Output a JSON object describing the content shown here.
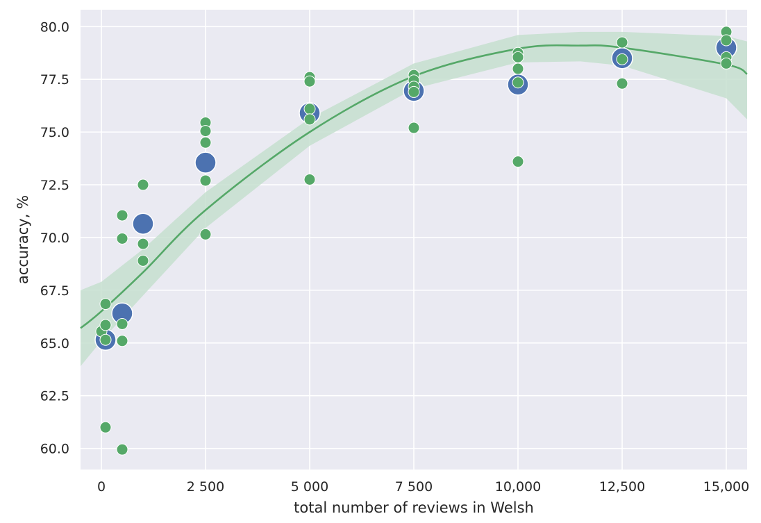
{
  "colors": {
    "plot_background": "#EAEAF2",
    "grid": "#FFFFFF",
    "mean_points": "#4C72B0",
    "run_points": "#55A868",
    "trend_line": "#55A868",
    "confidence_band": "#C5DFCF"
  },
  "chart_data": {
    "type": "scatter",
    "xlabel": "total number of reviews in Welsh",
    "ylabel": "accuracy, %",
    "xlim": [
      -500,
      15500
    ],
    "ylim": [
      59,
      80.8
    ],
    "grid": true,
    "x_ticks": [
      0,
      2500,
      5000,
      7500,
      10000,
      12500,
      15000
    ],
    "x_tick_labels": [
      "0",
      "2 500",
      "5 000",
      "7 500",
      "10,000",
      "12,500",
      "15,000"
    ],
    "y_ticks": [
      60,
      62.5,
      65,
      67.5,
      70,
      72.5,
      75,
      77.5,
      80
    ],
    "y_tick_labels": [
      "60.0",
      "62.5",
      "65.0",
      "67.5",
      "70.0",
      "72.5",
      "75.0",
      "77.5",
      "80.0"
    ],
    "series": [
      {
        "marker_size": "large",
        "points": [
          {
            "x": 100,
            "y": 65.15
          },
          {
            "x": 500,
            "y": 66.4
          },
          {
            "x": 1000,
            "y": 70.65
          },
          {
            "x": 2500,
            "y": 73.55
          },
          {
            "x": 5000,
            "y": 75.9
          },
          {
            "x": 7500,
            "y": 76.95
          },
          {
            "x": 10000,
            "y": 77.25
          },
          {
            "x": 12500,
            "y": 78.5
          },
          {
            "x": 15000,
            "y": 79.0
          }
        ]
      },
      {
        "marker_size": "small",
        "points": [
          {
            "x": 0,
            "y": 65.55
          },
          {
            "x": 100,
            "y": 66.85
          },
          {
            "x": 100,
            "y": 65.85
          },
          {
            "x": 100,
            "y": 65.15
          },
          {
            "x": 100,
            "y": 61.0
          },
          {
            "x": 500,
            "y": 71.05
          },
          {
            "x": 500,
            "y": 69.95
          },
          {
            "x": 500,
            "y": 65.9
          },
          {
            "x": 500,
            "y": 65.1
          },
          {
            "x": 500,
            "y": 59.95
          },
          {
            "x": 1000,
            "y": 72.5
          },
          {
            "x": 1000,
            "y": 69.7
          },
          {
            "x": 1000,
            "y": 68.9
          },
          {
            "x": 2500,
            "y": 75.45
          },
          {
            "x": 2500,
            "y": 75.05
          },
          {
            "x": 2500,
            "y": 74.5
          },
          {
            "x": 2500,
            "y": 72.7
          },
          {
            "x": 2500,
            "y": 70.15
          },
          {
            "x": 5000,
            "y": 77.6
          },
          {
            "x": 5000,
            "y": 77.4
          },
          {
            "x": 5000,
            "y": 76.1
          },
          {
            "x": 5000,
            "y": 75.6
          },
          {
            "x": 5000,
            "y": 72.75
          },
          {
            "x": 7500,
            "y": 77.7
          },
          {
            "x": 7500,
            "y": 77.45
          },
          {
            "x": 7500,
            "y": 77.15
          },
          {
            "x": 7500,
            "y": 76.9
          },
          {
            "x": 7500,
            "y": 75.2
          },
          {
            "x": 10000,
            "y": 78.75
          },
          {
            "x": 10000,
            "y": 78.55
          },
          {
            "x": 10000,
            "y": 78.0
          },
          {
            "x": 10000,
            "y": 77.35
          },
          {
            "x": 10000,
            "y": 73.6
          },
          {
            "x": 12500,
            "y": 79.25
          },
          {
            "x": 12500,
            "y": 78.45
          },
          {
            "x": 12500,
            "y": 77.3
          },
          {
            "x": 15000,
            "y": 79.75
          },
          {
            "x": 15000,
            "y": 79.35
          },
          {
            "x": 15000,
            "y": 78.55
          },
          {
            "x": 15000,
            "y": 78.25
          }
        ]
      }
    ],
    "trend": {
      "type": "quadratic_fit_with_confidence_band",
      "x": [
        -500,
        0,
        1000,
        2500,
        5000,
        7500,
        10000,
        11500,
        12500,
        15000,
        15500
      ],
      "y": [
        65.7,
        66.5,
        68.35,
        71.3,
        75.0,
        77.65,
        78.95,
        79.1,
        79.0,
        78.2,
        77.75
      ],
      "band_lower": [
        63.9,
        65.1,
        67.25,
        70.45,
        74.35,
        77.05,
        78.3,
        78.35,
        78.15,
        76.6,
        75.6
      ],
      "band_upper": [
        67.5,
        67.9,
        69.45,
        72.15,
        75.65,
        78.25,
        79.6,
        79.75,
        79.75,
        79.55,
        79.3
      ]
    }
  }
}
